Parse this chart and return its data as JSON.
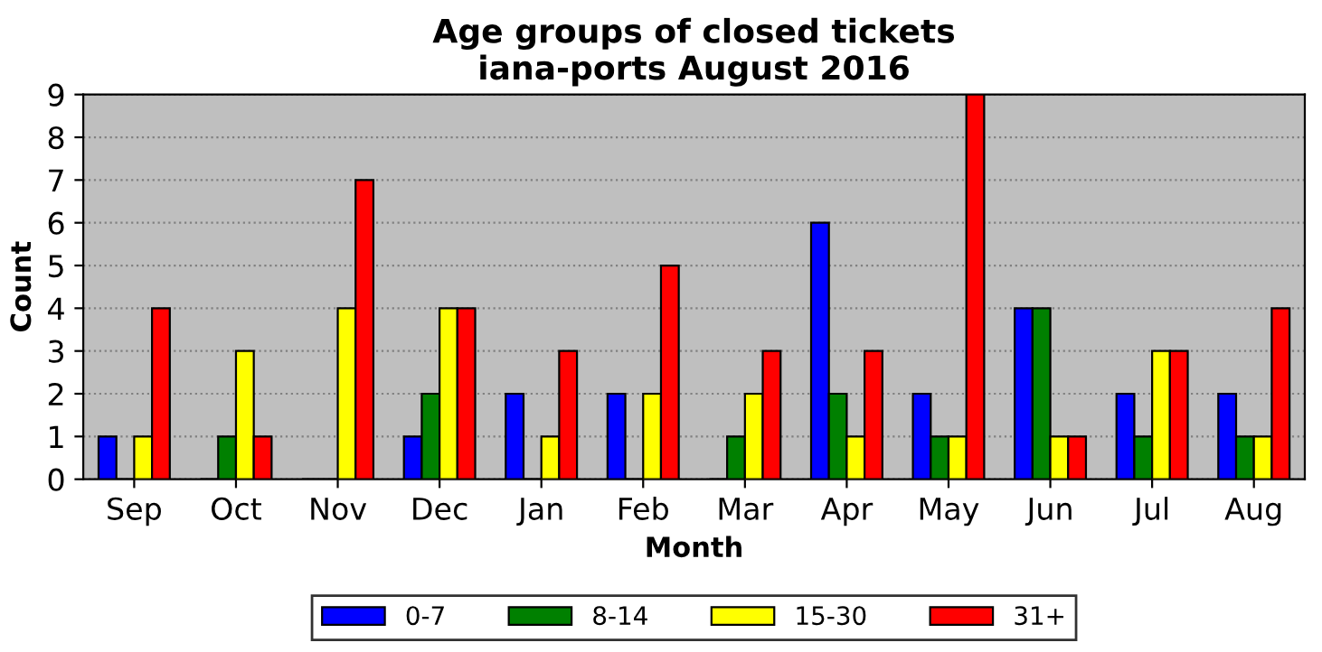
{
  "chart_data": {
    "type": "bar",
    "title": "Age groups of closed tickets\niana-ports August 2016",
    "xlabel": "Month",
    "ylabel": "Count",
    "categories": [
      "Sep",
      "Oct",
      "Nov",
      "Dec",
      "Jan",
      "Feb",
      "Mar",
      "Apr",
      "May",
      "Jun",
      "Jul",
      "Aug"
    ],
    "series": [
      {
        "name": "0-7",
        "color": "#0000ff",
        "values": [
          1,
          0,
          0,
          1,
          2,
          2,
          0,
          6,
          2,
          4,
          2,
          2
        ]
      },
      {
        "name": "8-14",
        "color": "#008000",
        "values": [
          0,
          1,
          0,
          2,
          0,
          0,
          1,
          2,
          1,
          4,
          1,
          1
        ]
      },
      {
        "name": "15-30",
        "color": "#ffff00",
        "values": [
          1,
          3,
          4,
          4,
          1,
          2,
          2,
          1,
          1,
          1,
          3,
          1
        ]
      },
      {
        "name": "31+",
        "color": "#ff0000",
        "values": [
          4,
          1,
          7,
          4,
          3,
          5,
          3,
          3,
          9,
          1,
          3,
          4
        ]
      }
    ],
    "ylim": [
      0,
      9
    ],
    "yticks": [
      0,
      1,
      2,
      3,
      4,
      5,
      6,
      7,
      8,
      9
    ],
    "grid": "y",
    "legend": "bottom"
  }
}
